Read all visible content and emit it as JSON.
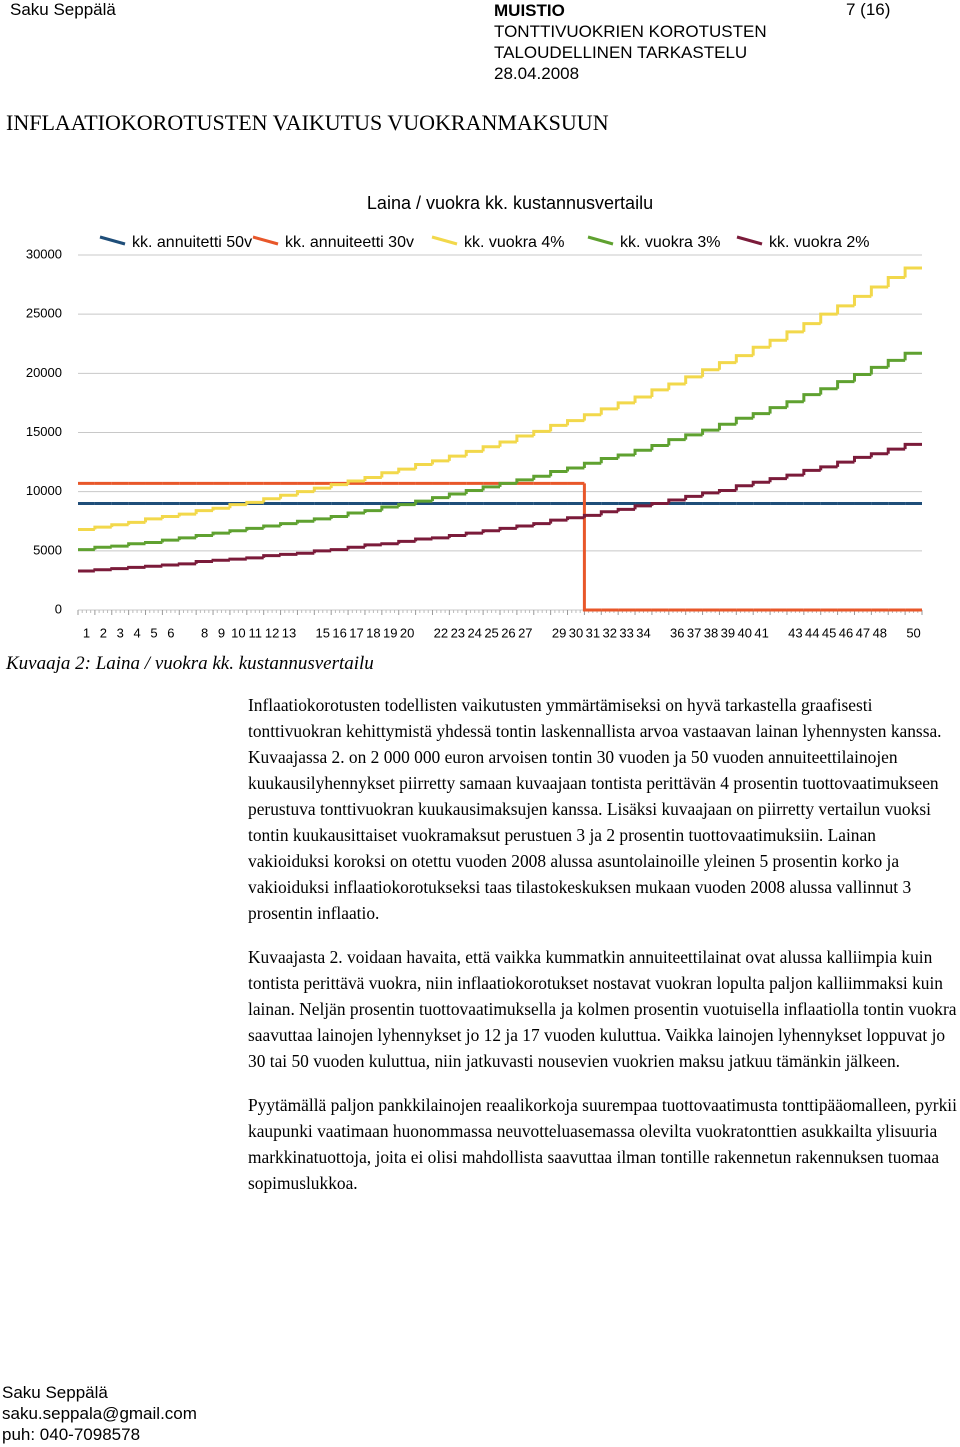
{
  "header": {
    "author": "Saku Seppälä",
    "doc_type": "MUISTIO",
    "subject_lines": [
      "TONTTIVUOKRIEN KOROTUSTEN",
      "TALOUDELLINEN TARKASTELU"
    ],
    "date": "28.04.2008",
    "page": "7 (16)"
  },
  "heading": "INFLAATIOKOROTUSTEN VAIKUTUS VUOKRANMAKSUUN",
  "chart_data": {
    "type": "step-line",
    "title": "Laina / vuokra kk. kustannusvertailu",
    "categories": [
      1,
      2,
      3,
      4,
      5,
      6,
      null,
      8,
      9,
      10,
      11,
      12,
      13,
      null,
      15,
      16,
      17,
      18,
      19,
      20,
      null,
      22,
      23,
      24,
      25,
      26,
      27,
      null,
      29,
      30,
      31,
      32,
      33,
      34,
      null,
      36,
      37,
      38,
      39,
      40,
      41,
      null,
      43,
      44,
      45,
      46,
      47,
      48,
      null,
      50
    ],
    "ylim": [
      0,
      30000
    ],
    "yticks": [
      0,
      5000,
      10000,
      15000,
      20000,
      25000,
      30000
    ],
    "grid": true,
    "legend": "top",
    "series": [
      {
        "name": "kk. annuitetti 50v",
        "color": "#1f4e79",
        "values": [
          9000,
          9000,
          9000,
          9000,
          9000,
          9000,
          9000,
          9000,
          9000,
          9000,
          9000,
          9000,
          9000,
          9000,
          9000,
          9000,
          9000,
          9000,
          9000,
          9000,
          9000,
          9000,
          9000,
          9000,
          9000,
          9000,
          9000,
          9000,
          9000,
          9000,
          9000,
          9000,
          9000,
          9000,
          9000,
          9000,
          9000,
          9000,
          9000,
          9000,
          9000,
          9000,
          9000,
          9000,
          9000,
          9000,
          9000,
          9000,
          9000,
          9000
        ]
      },
      {
        "name": "kk. annuiteetti 30v",
        "color": "#e8572a",
        "values": [
          10700,
          10700,
          10700,
          10700,
          10700,
          10700,
          10700,
          10700,
          10700,
          10700,
          10700,
          10700,
          10700,
          10700,
          10700,
          10700,
          10700,
          10700,
          10700,
          10700,
          10700,
          10700,
          10700,
          10700,
          10700,
          10700,
          10700,
          10700,
          10700,
          10700,
          0,
          0,
          0,
          0,
          0,
          0,
          0,
          0,
          0,
          0,
          0,
          0,
          0,
          0,
          0,
          0,
          0,
          0,
          0,
          0
        ]
      },
      {
        "name": "kk. vuokra 4%",
        "color": "#f2d84b",
        "values": [
          6800,
          7000,
          7200,
          7400,
          7700,
          7900,
          8100,
          8400,
          8600,
          8900,
          9100,
          9400,
          9700,
          10000,
          10300,
          10600,
          10900,
          11200,
          11600,
          11900,
          12300,
          12600,
          13000,
          13400,
          13800,
          14200,
          14700,
          15100,
          15600,
          16000,
          16500,
          17000,
          17500,
          18000,
          18600,
          19100,
          19700,
          20300,
          20900,
          21500,
          22200,
          22800,
          23500,
          24200,
          25000,
          25700,
          26500,
          27300,
          28100,
          28900
        ]
      },
      {
        "name": "kk. vuokra 3%",
        "color": "#5fa130",
        "values": [
          5100,
          5300,
          5400,
          5600,
          5700,
          5900,
          6100,
          6300,
          6500,
          6700,
          6900,
          7100,
          7300,
          7500,
          7700,
          7900,
          8200,
          8400,
          8700,
          8900,
          9200,
          9500,
          9800,
          10100,
          10400,
          10700,
          11000,
          11300,
          11700,
          12000,
          12400,
          12800,
          13100,
          13500,
          13900,
          14400,
          14800,
          15200,
          15700,
          16200,
          16600,
          17100,
          17600,
          18200,
          18700,
          19300,
          19900,
          20500,
          21100,
          21700
        ]
      },
      {
        "name": "kk. vuokra 2%",
        "color": "#7b1b3a",
        "values": [
          3300,
          3400,
          3500,
          3600,
          3700,
          3800,
          3900,
          4100,
          4200,
          4300,
          4400,
          4600,
          4700,
          4800,
          5000,
          5100,
          5300,
          5500,
          5600,
          5800,
          6000,
          6100,
          6300,
          6500,
          6700,
          6900,
          7100,
          7300,
          7600,
          7800,
          8000,
          8300,
          8500,
          8800,
          9000,
          9300,
          9600,
          9900,
          10100,
          10500,
          10800,
          11100,
          11400,
          11800,
          12100,
          12500,
          12900,
          13200,
          13600,
          14000
        ]
      }
    ]
  },
  "caption": "Kuvaaja 2: Laina / vuokra kk. kustannusvertailu",
  "paragraphs": [
    "Inflaatiokorotusten todellisten vaikutusten ymmärtämiseksi on hyvä tarkastella graafisesti tonttivuokran kehittymistä yhdessä tontin laskennallista arvoa vastaavan lainan lyhennysten kanssa. Kuvaajassa 2. on 2 000 000 euron arvoisen tontin 30 vuoden ja 50 vuoden annuiteettilainojen kuukausilyhennykset piirretty samaan kuvaajaan tontista perittävän 4 prosentin tuottovaatimukseen perustuva tonttivuokran kuukausimaksujen kanssa. Lisäksi kuvaajaan on piirretty vertailun vuoksi tontin kuukausittaiset vuokramaksut perustuen 3 ja 2 prosentin tuottovaatimuksiin. Lainan vakioiduksi koroksi on otettu vuoden 2008 alussa asuntolainoille yleinen 5 prosentin korko ja vakioiduksi inflaatiokorotukseksi taas tilastokeskuksen mukaan vuoden 2008 alussa vallinnut 3 prosentin inflaatio.",
    "Kuvaajasta 2. voidaan havaita, että vaikka kummatkin annuiteettilainat ovat alussa kalliimpia kuin tontista perittävä vuokra, niin inflaatiokorotukset nostavat vuokran lopulta paljon kalliimmaksi kuin lainan. Neljän prosentin tuottovaatimuksella ja kolmen prosentin vuotuisella inflaatiolla tontin vuokra saavuttaa lainojen lyhennykset jo 12 ja 17 vuoden kuluttua. Vaikka lainojen lyhennykset loppuvat jo 30 tai 50 vuoden kuluttua, niin jatkuvasti nousevien vuokrien maksu jatkuu tämänkin jälkeen.",
    "Pyytämällä paljon pankkilainojen reaalikorkoja suurempaa tuottovaatimusta tonttipääomalleen, pyrkii kaupunki vaatimaan huonommassa neuvotteluasemassa olevilta vuokratonttien asukkailta ylisuuria markkinatuottoja, joita ei olisi mahdollista saavuttaa ilman tontille rakennetun rakennuksen tuomaa sopimuslukkoa."
  ],
  "footer": {
    "name": "Saku Seppälä",
    "email": "saku.seppala@gmail.com",
    "phone": "puh: 040-7098578"
  }
}
